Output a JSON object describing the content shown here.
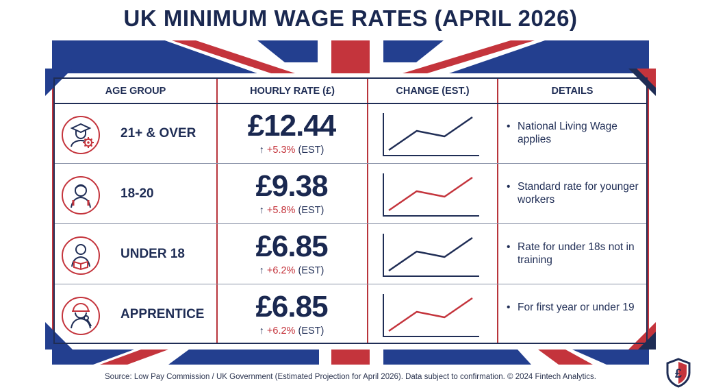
{
  "title": "UK MINIMUM WAGE RATES (APRIL 2026)",
  "colors": {
    "navy": "#1f2d55",
    "red": "#c4343c",
    "flag_blue": "#233f8f"
  },
  "headers": {
    "age_group": "AGE GROUP",
    "hourly_rate": "HOURLY RATE (£)",
    "change": "CHANGE (EST.)",
    "details": "DETAILS"
  },
  "rows": [
    {
      "icon": "graduate-gear-icon",
      "age": "21+ & OVER",
      "rate": "£12.44",
      "arrow": "↑",
      "pct": "+5.3%",
      "est": "(EST)",
      "bullet": "•",
      "details": "National Living Wage applies",
      "trend": [
        1,
        2.4,
        2.0,
        3.4
      ],
      "line_color": "#1f2d55"
    },
    {
      "icon": "young-person-icon",
      "age": "18-20",
      "rate": "£9.38",
      "arrow": "↑",
      "pct": "+5.8%",
      "est": "(EST)",
      "bullet": "•",
      "details": "Standard rate for younger workers",
      "trend": [
        1,
        2.4,
        2.0,
        3.4
      ],
      "line_color": "#c4343c"
    },
    {
      "icon": "student-reading-icon",
      "age": "UNDER 18",
      "rate": "£6.85",
      "arrow": "↑",
      "pct": "+6.2%",
      "est": "(EST)",
      "bullet": "•",
      "details": "Rate for under 18s not in training",
      "trend": [
        1,
        2.4,
        2.0,
        3.4
      ],
      "line_color": "#1f2d55"
    },
    {
      "icon": "hardhat-worker-wrench-icon",
      "age": "APPRENTICE",
      "rate": "£6.85",
      "arrow": "↑",
      "pct": "+6.2%",
      "est": "(EST)",
      "bullet": "•",
      "details": "For first year or under 19",
      "trend": [
        1,
        2.4,
        2.0,
        3.4
      ],
      "line_color": "#c4343c"
    }
  ],
  "source": "Source: Low Pay Commission / UK Government (Estimated Projection for April 2026). Data subject to confirmation. © 2024 Fintech Analytics.",
  "logo_icon": "pound-shield-logo-icon",
  "logo_text": "£"
}
